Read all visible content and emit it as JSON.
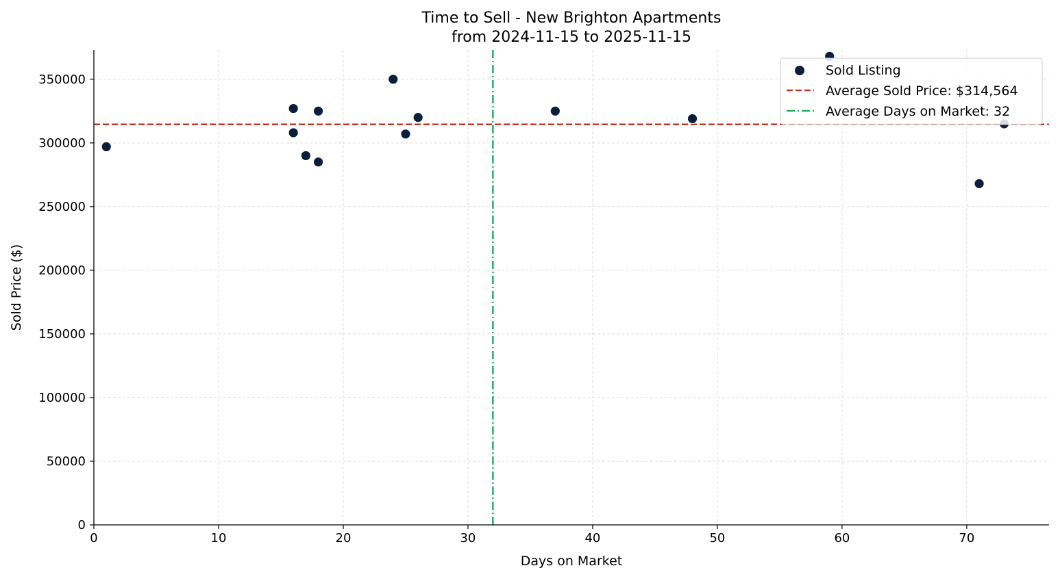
{
  "chart_data": {
    "type": "scatter",
    "title": "Time to Sell - New Brighton Apartments",
    "subtitle": "from 2024-11-15 to 2025-11-15",
    "xlabel": "Days on Market",
    "ylabel": "Sold Price ($)",
    "xlim": [
      0,
      76.6
    ],
    "ylim": [
      0,
      373000
    ],
    "xticks": [
      0,
      10,
      20,
      30,
      40,
      50,
      60,
      70
    ],
    "yticks": [
      0,
      50000,
      100000,
      150000,
      200000,
      250000,
      300000,
      350000
    ],
    "grid": true,
    "legend_placement": "top-right",
    "series": [
      {
        "name": "Sold Listing",
        "color": "#0b1f3a",
        "points": [
          {
            "x": 1,
            "y": 297000
          },
          {
            "x": 16,
            "y": 327000
          },
          {
            "x": 16,
            "y": 308000
          },
          {
            "x": 17,
            "y": 290000
          },
          {
            "x": 18,
            "y": 325000
          },
          {
            "x": 18,
            "y": 285000
          },
          {
            "x": 24,
            "y": 350000
          },
          {
            "x": 25,
            "y": 307000
          },
          {
            "x": 26,
            "y": 320000
          },
          {
            "x": 37,
            "y": 325000
          },
          {
            "x": 48,
            "y": 319000
          },
          {
            "x": 59,
            "y": 368000
          },
          {
            "x": 71,
            "y": 268000
          },
          {
            "x": 73,
            "y": 315000
          }
        ]
      }
    ],
    "reference_lines": [
      {
        "name": "Average Sold Price: $314,564",
        "orientation": "horizontal",
        "value": 314564,
        "color": "#c0392b",
        "style": "dashed"
      },
      {
        "name": "Average Days on Market: 32",
        "orientation": "vertical",
        "value": 32,
        "color": "#27ae60",
        "style": "dashdot"
      }
    ]
  }
}
